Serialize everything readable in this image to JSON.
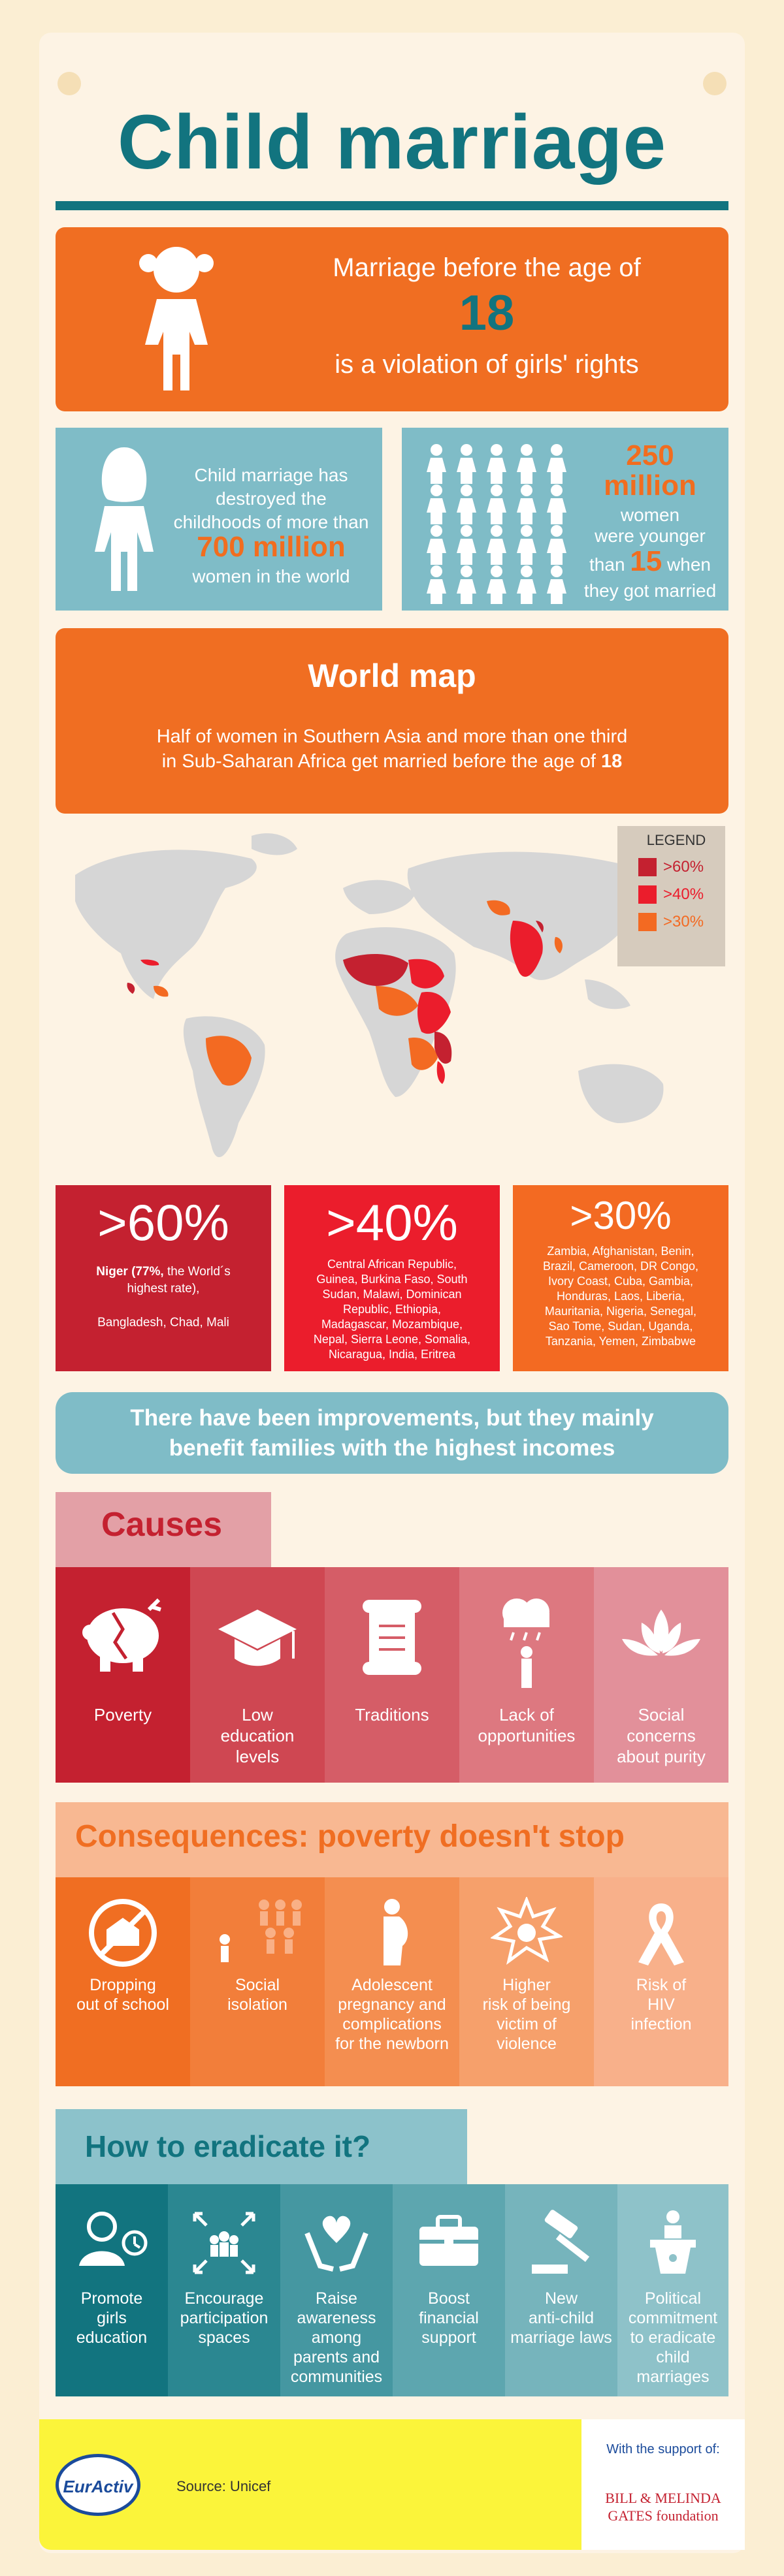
{
  "header": {
    "title": "Child marriage"
  },
  "intro": {
    "line1": "Marriage before the age of",
    "age": "18",
    "line2": "is a violation of girls' rights"
  },
  "stat_left": {
    "line1": "Child marriage has",
    "line2": "destroyed the",
    "line3": "childhoods of more than",
    "number": "700 million",
    "line4": "women in the world"
  },
  "stat_right": {
    "number1": "250",
    "number2": "million",
    "line1": "women",
    "line2": "were younger",
    "than": "than",
    "age": "15",
    "line3": "when",
    "line4": "they got married"
  },
  "world_map": {
    "title": "World map",
    "subtitle1": "Half of women in Southern Asia and more than one third",
    "subtitle2_pre": "in Sub-Saharan Africa get married before the age of",
    "subtitle2_num": "18",
    "legend": {
      "title": "LEGEND",
      "items": [
        ">60%",
        ">40%",
        ">30%"
      ]
    }
  },
  "colors": {
    "over60": "#c42130",
    "over40": "#eb1d2c",
    "over30": "#f36a22",
    "teal": "#12747f",
    "orange": "#f06e22"
  },
  "tiers": {
    "t60": {
      "label": ">60%",
      "bold": "Niger (77%,",
      "text1": " the World´s",
      "text2": "highest rate),",
      "text3": "Bangladesh, Chad, Mali"
    },
    "t40": {
      "label": ">40%",
      "lines": [
        "Central African Republic,",
        "Guinea, Burkina Faso, South",
        "Sudan, Malawi, Dominican",
        "Republic, Ethiopia,",
        "Madagascar, Mozambique,",
        "Nepal, Sierra Leone, Somalia,",
        "Nicaragua, India, Eritrea"
      ]
    },
    "t30": {
      "label": ">30%",
      "lines": [
        "Zambia, Afghanistan, Benin,",
        "Brazil, Cameroon, DR Congo,",
        "Ivory Coast, Cuba, Gambia,",
        "Honduras, Laos, Liberia,",
        "Mauritania, Nigeria, Senegal,",
        "Sao Tome, Sudan, Uganda,",
        "Tanzania, Yemen, Zimbabwe"
      ]
    }
  },
  "improvements": {
    "line1": "There have been improvements, but they mainly",
    "line2": "benefit families with the highest incomes"
  },
  "causes": {
    "title": "Causes",
    "items": [
      {
        "label": "Poverty",
        "icon": "piggy-bank-icon"
      },
      {
        "label": "Low\neducation\nlevels",
        "icon": "graduation-cap-icon"
      },
      {
        "label": "Traditions",
        "icon": "scroll-icon"
      },
      {
        "label": "Lack of\nopportunities",
        "icon": "rain-cloud-icon"
      },
      {
        "label": "Social\nconcerns\nabout purity",
        "icon": "lotus-icon"
      }
    ]
  },
  "consequences": {
    "title": "Consequences: poverty doesn't stop",
    "items": [
      {
        "label": "Dropping\nout of school",
        "icon": "no-school-icon"
      },
      {
        "label": "Social\nisolation",
        "icon": "isolated-person-icon"
      },
      {
        "label": "Adolescent\npregnancy and\ncomplications\nfor the newborn",
        "icon": "pregnant-icon"
      },
      {
        "label": "Higher\nrisk of being\nvictim of\nviolence",
        "icon": "violence-icon"
      },
      {
        "label": "Risk of\nHIV\ninfection",
        "icon": "ribbon-icon"
      }
    ]
  },
  "eradicate": {
    "title": "How to eradicate it?",
    "items": [
      {
        "label": "Promote\ngirls\neducation",
        "icon": "teacher-icon"
      },
      {
        "label": "Encourage\nparticipation\nspaces",
        "icon": "group-icon"
      },
      {
        "label": "Raise\nawareness\namong\nparents and\ncommunities",
        "icon": "heart-hands-icon"
      },
      {
        "label": "Boost\nfinancial\nsupport",
        "icon": "briefcase-icon"
      },
      {
        "label": "New\nanti-child\nmarriage laws",
        "icon": "gavel-icon"
      },
      {
        "label": "Political\ncommitment\nto eradicate\nchild\nmarriages",
        "icon": "podium-icon"
      }
    ]
  },
  "footer": {
    "logo": "EurActiv",
    "source": "Source: Unicef",
    "support": "With the support of:",
    "foundation1": "BILL & MELINDA",
    "foundation2": "GATES foundation"
  }
}
